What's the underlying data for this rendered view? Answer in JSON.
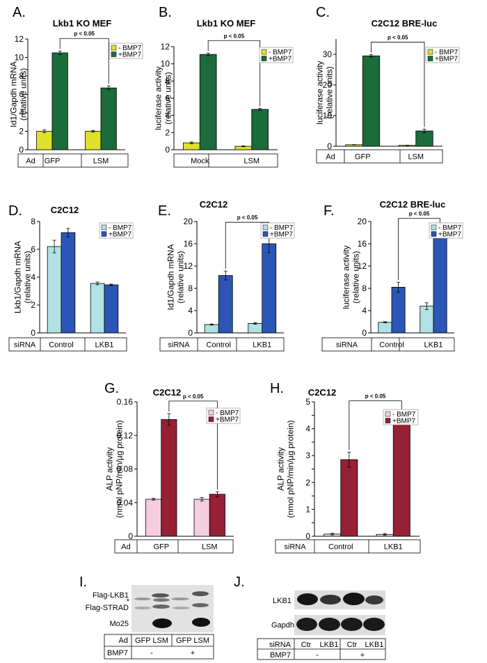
{
  "colors": {
    "yellow": "#dfe12a",
    "green": "#1c6b3a",
    "lightblue": "#b0e1e4",
    "blue": "#2c56b5",
    "pink": "#f6cde0",
    "darkred": "#962034"
  },
  "chart_data": [
    {
      "id": "A",
      "panel_label": "A.",
      "type": "bar",
      "title": "Lkb1 KO MEF",
      "ylabel_lines": [
        "Id1/Gapdh mRNA",
        "(relative units)"
      ],
      "ylim": [
        0,
        12
      ],
      "yticks": [
        0,
        2,
        4,
        6,
        8,
        10,
        12
      ],
      "categories": [
        "GFP",
        "LSM"
      ],
      "row_header": "Ad",
      "series": [
        {
          "name": "- BMP7",
          "color": "#dfe12a",
          "values": [
            2.0,
            2.0
          ],
          "errors": [
            0.15,
            0.1
          ]
        },
        {
          "name": "+BMP7",
          "color": "#1c6b3a",
          "values": [
            10.5,
            6.7
          ],
          "errors": [
            0.2,
            0.2
          ]
        }
      ],
      "annotation": "p < 0.05"
    },
    {
      "id": "B",
      "panel_label": "B.",
      "type": "bar",
      "title": "Lkb1 KO MEF",
      "ylabel_lines": [
        "luciferase activity",
        "(relative units)"
      ],
      "ylim": [
        0,
        12
      ],
      "yticks": [
        0,
        2,
        4,
        6,
        8,
        10,
        12
      ],
      "categories": [
        "Mock",
        "LSM"
      ],
      "row_header": "",
      "series": [
        {
          "name": "- BMP7",
          "color": "#dfe12a",
          "values": [
            0.8,
            0.4
          ],
          "errors": [
            0.1,
            0.05
          ]
        },
        {
          "name": "+BMP7",
          "color": "#1c6b3a",
          "values": [
            11.1,
            4.7
          ],
          "errors": [
            0.15,
            0.1
          ]
        }
      ],
      "annotation": "p < 0.05"
    },
    {
      "id": "C",
      "panel_label": "C.",
      "type": "bar",
      "title": "C2C12 BRE-luc",
      "ylabel_lines": [
        "luciferase activity",
        "(relative units)"
      ],
      "ylim": [
        0,
        35
      ],
      "yticks": [
        0,
        10,
        20,
        30
      ],
      "categories": [
        "GFP",
        "LSM"
      ],
      "row_header": "Ad",
      "series": [
        {
          "name": "- BMP7",
          "color": "#dfe12a",
          "values": [
            0.5,
            0.3
          ],
          "errors": [
            0.05,
            0.05
          ]
        },
        {
          "name": "+BMP7",
          "color": "#1c6b3a",
          "values": [
            29.5,
            5.0
          ],
          "errors": [
            0.4,
            0.6
          ]
        }
      ],
      "annotation": "p < 0.05"
    },
    {
      "id": "D",
      "panel_label": "D.",
      "type": "bar",
      "title": "C2C12",
      "ylabel_lines": [
        "Lkb1/Gapdh mRNA",
        "(relative units)"
      ],
      "ylim": [
        0,
        8
      ],
      "yticks": [
        0,
        2,
        4,
        6,
        8
      ],
      "categories": [
        "Control",
        "LKB1"
      ],
      "row_header": "siRNA",
      "series": [
        {
          "name": "- BMP7",
          "color": "#b0e1e4",
          "values": [
            6.2,
            3.55
          ],
          "errors": [
            0.45,
            0.1
          ]
        },
        {
          "name": "+BMP7",
          "color": "#2c56b5",
          "values": [
            7.2,
            3.45
          ],
          "errors": [
            0.3,
            0.05
          ]
        }
      ],
      "annotation": ""
    },
    {
      "id": "E",
      "panel_label": "E.",
      "type": "bar",
      "title": "C2C12",
      "ylabel_lines": [
        "Id1/Gapdh mRNA",
        "(relative units)"
      ],
      "ylim": [
        0,
        20
      ],
      "yticks": [
        0,
        4,
        8,
        12,
        16,
        20
      ],
      "categories": [
        "Control",
        "LKB1"
      ],
      "row_header": "siRNA",
      "series": [
        {
          "name": "- BMP7",
          "color": "#b0e1e4",
          "values": [
            1.5,
            1.7
          ],
          "errors": [
            0.1,
            0.15
          ]
        },
        {
          "name": "+BMP7",
          "color": "#2c56b5",
          "values": [
            10.3,
            16.0
          ],
          "errors": [
            0.8,
            1.6
          ]
        }
      ],
      "annotation": "p < 0.05"
    },
    {
      "id": "F",
      "panel_label": "F.",
      "type": "bar",
      "title": "C2C12 BRE-luc",
      "ylabel_lines": [
        "luciferase activity",
        "(relative units)"
      ],
      "ylim": [
        0,
        20
      ],
      "yticks": [
        0,
        4,
        8,
        12,
        16,
        20
      ],
      "categories": [
        "Control",
        "LKB1"
      ],
      "row_header": "siRNA",
      "series": [
        {
          "name": "- BMP7",
          "color": "#b0e1e4",
          "values": [
            1.9,
            4.8
          ],
          "errors": [
            0.1,
            0.6
          ]
        },
        {
          "name": "+BMP7",
          "color": "#2c56b5",
          "values": [
            8.2,
            17.9
          ],
          "errors": [
            0.9,
            0.4
          ]
        }
      ],
      "annotation": "p < 0.05"
    },
    {
      "id": "G",
      "panel_label": "G.",
      "type": "bar",
      "title": "C2C12",
      "ylabel_lines": [
        "ALP activity",
        "(nmol pNP/min/µg protein)"
      ],
      "ylim": [
        0,
        0.16
      ],
      "yticks": [
        0,
        0.04,
        0.08,
        0.12,
        0.16
      ],
      "ytick_labels": [
        "0",
        "0.04",
        "0.08",
        "0.12",
        "0.16"
      ],
      "categories": [
        "GFP",
        "LSM"
      ],
      "row_header": "Ad",
      "series": [
        {
          "name": "- BMP7",
          "color": "#f6cde0",
          "values": [
            0.044,
            0.044
          ],
          "errors": [
            0.001,
            0.002
          ]
        },
        {
          "name": "+BMP7",
          "color": "#962034",
          "values": [
            0.139,
            0.05
          ],
          "errors": [
            0.007,
            0.003
          ]
        }
      ],
      "annotation": "p < 0.05"
    },
    {
      "id": "H",
      "panel_label": "H.",
      "type": "bar",
      "title": "C2C12",
      "ylabel_lines": [
        "ALP activity",
        "(nmol pNP/min/µg protein)"
      ],
      "ylim": [
        0,
        5
      ],
      "yticks": [
        0,
        0.5,
        1,
        1.5,
        2,
        2.5,
        3,
        3.5,
        4,
        4.5,
        5
      ],
      "ytick_labels": [
        "0",
        "",
        "1",
        "",
        "2",
        "",
        "3",
        "",
        "4",
        "",
        "5"
      ],
      "categories": [
        "Control",
        "LKB1"
      ],
      "row_header": "siRNA",
      "series": [
        {
          "name": "- BMP7",
          "color": "#f6cde0",
          "values": [
            0.08,
            0.07
          ],
          "errors": [
            0.03,
            0.03
          ]
        },
        {
          "name": "+BMP7",
          "color": "#962034",
          "values": [
            2.85,
            4.5
          ],
          "errors": [
            0.28,
            0.07
          ]
        }
      ],
      "annotation": "p < 0.05"
    }
  ],
  "blots": {
    "I": {
      "panel_label": "I.",
      "row_labels": [
        "Flag-LKB1",
        "*",
        "Flag-STRAD",
        "Mo25"
      ],
      "table": {
        "row1_header": "Ad",
        "row1_cells": [
          "GFP LSM",
          "GFP LSM"
        ],
        "row2_header": "BMP7",
        "row2_cells": [
          "-",
          "+"
        ]
      }
    },
    "J": {
      "panel_label": "J.",
      "row_labels": [
        "LKB1",
        "Gapdh"
      ],
      "table": {
        "row1_header": "siRNA",
        "row1_cells": [
          "Ctr",
          "LKB1",
          "Ctr",
          "LKB1"
        ],
        "row2_header": "BMP7",
        "row2_cells": [
          "-",
          "+"
        ]
      }
    }
  }
}
